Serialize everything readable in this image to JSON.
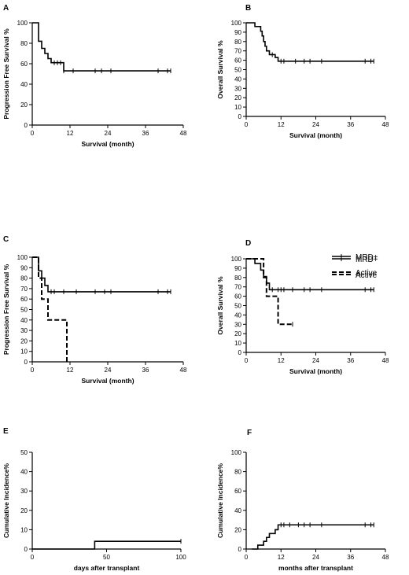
{
  "chart_data": [
    {
      "panel": "A",
      "type": "line",
      "step": true,
      "xlabel": "Survival (month)",
      "ylabel": "Progression Free Survival %",
      "xlim": [
        0,
        48
      ],
      "ylim": [
        0,
        100
      ],
      "xticks": [
        0,
        12,
        24,
        36,
        48
      ],
      "yticks": [
        0,
        20,
        40,
        60,
        80,
        100
      ],
      "series": [
        {
          "name": "",
          "dashed": false,
          "x": [
            0,
            2,
            3,
            4,
            5,
            6,
            10,
            44
          ],
          "y": [
            100,
            82,
            75,
            70,
            65,
            61,
            53,
            53
          ],
          "censor_x": [
            7,
            8,
            9,
            10,
            13,
            20,
            22,
            25,
            40,
            43,
            44
          ]
        }
      ]
    },
    {
      "panel": "B",
      "type": "line",
      "step": true,
      "xlabel": "Survival (month)",
      "ylabel": "Overall Survival %",
      "xlim": [
        0,
        48
      ],
      "ylim": [
        0,
        100
      ],
      "xticks": [
        0,
        12,
        24,
        36,
        48
      ],
      "yticks": [
        0,
        10,
        20,
        30,
        40,
        50,
        60,
        70,
        80,
        90,
        100
      ],
      "series": [
        {
          "name": "",
          "dashed": false,
          "x": [
            0,
            3,
            5,
            5.5,
            6,
            6.5,
            7,
            8,
            10,
            11,
            44
          ],
          "y": [
            100,
            96,
            91,
            86,
            80,
            75,
            70,
            66,
            63,
            59,
            59
          ],
          "censor_x": [
            9,
            12,
            13,
            17,
            20,
            22,
            26,
            41,
            43,
            44
          ]
        }
      ]
    },
    {
      "panel": "C",
      "type": "line",
      "step": true,
      "xlabel": "Survival (month)",
      "ylabel": "Progression Free Survival %",
      "xlim": [
        0,
        48
      ],
      "ylim": [
        0,
        100
      ],
      "xticks": [
        0,
        12,
        24,
        36,
        48
      ],
      "yticks": [
        0,
        10,
        20,
        30,
        40,
        50,
        60,
        70,
        80,
        90,
        100
      ],
      "legend": "top-right",
      "series": [
        {
          "name": "MRD+",
          "dashed": false,
          "x": [
            0,
            2,
            3,
            4,
            5,
            44
          ],
          "y": [
            100,
            87,
            80,
            73,
            67,
            67
          ],
          "censor_x": [
            6,
            7,
            10,
            14,
            20,
            23,
            25,
            40,
            43,
            44
          ]
        },
        {
          "name": "Active",
          "dashed": true,
          "x": [
            0,
            2,
            3,
            5,
            10,
            11
          ],
          "y": [
            100,
            80,
            60,
            40,
            40,
            0
          ],
          "censor_x": []
        }
      ]
    },
    {
      "panel": "D",
      "type": "line",
      "step": true,
      "xlabel": "Survival (month)",
      "ylabel": "Overall Survival %",
      "xlim": [
        0,
        48
      ],
      "ylim": [
        0,
        100
      ],
      "xticks": [
        0,
        12,
        24,
        36,
        48
      ],
      "yticks": [
        0,
        10,
        20,
        30,
        40,
        50,
        60,
        70,
        80,
        90,
        100
      ],
      "legend": "top-right",
      "series": [
        {
          "name": "MRD+",
          "dashed": false,
          "x": [
            0,
            3,
            5,
            6,
            7,
            8,
            44
          ],
          "y": [
            100,
            95,
            88,
            81,
            74,
            67,
            67
          ],
          "censor_x": [
            9,
            11,
            12,
            13,
            16,
            20,
            22,
            26,
            41,
            43,
            44
          ]
        },
        {
          "name": "Active",
          "dashed": true,
          "x": [
            0,
            6,
            7,
            10,
            11,
            16
          ],
          "y": [
            100,
            80,
            60,
            60,
            30,
            30
          ],
          "censor_x": [
            16
          ]
        }
      ]
    },
    {
      "panel": "E",
      "type": "line",
      "step": true,
      "xlabel": "days after transplant",
      "ylabel": "Cumulative Incidence%",
      "xlim": [
        0,
        100
      ],
      "ylim": [
        0,
        50
      ],
      "xticks": [
        0,
        50,
        100
      ],
      "yticks": [
        0,
        10,
        20,
        30,
        40,
        50
      ],
      "series": [
        {
          "name": "",
          "dashed": false,
          "x": [
            0,
            42,
            100
          ],
          "y": [
            0,
            4,
            4
          ],
          "censor_x": [
            100
          ]
        }
      ]
    },
    {
      "panel": "F",
      "type": "line",
      "step": true,
      "xlabel": "months after transplant",
      "ylabel": "Cumulative Incidence%",
      "xlim": [
        0,
        48
      ],
      "ylim": [
        0,
        100
      ],
      "xticks": [
        0,
        12,
        24,
        36,
        48
      ],
      "yticks": [
        0,
        20,
        40,
        60,
        80,
        100
      ],
      "series": [
        {
          "name": "",
          "dashed": false,
          "x": [
            2,
            4,
            6,
            7,
            8,
            10,
            11,
            44
          ],
          "y": [
            0,
            4,
            8,
            12,
            16,
            20,
            25,
            25
          ],
          "censor_x": [
            12,
            13,
            15,
            18,
            20,
            22,
            26,
            41,
            43,
            44
          ]
        }
      ]
    }
  ]
}
